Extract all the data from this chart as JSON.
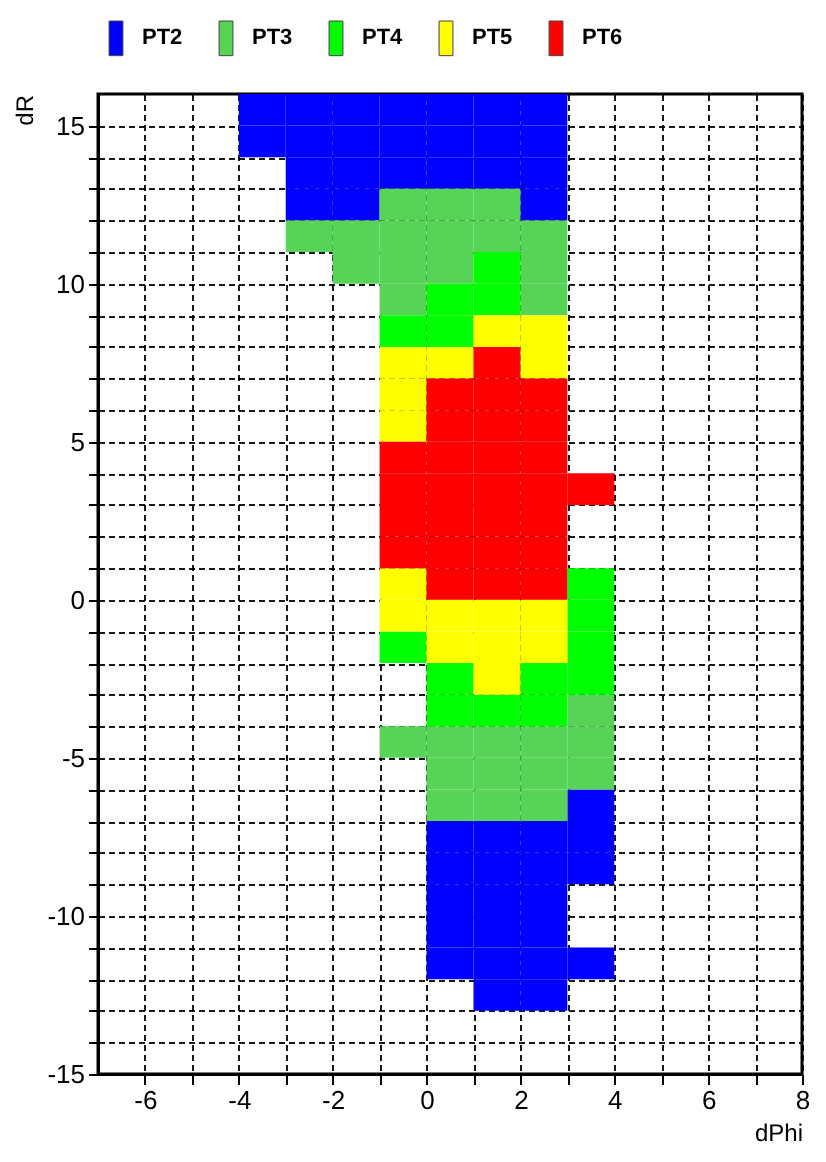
{
  "chart_data": {
    "type": "scatter",
    "xlabel": "dPhi",
    "ylabel": "dR",
    "xlim": [
      -7,
      8
    ],
    "ylim": [
      -15,
      16
    ],
    "xticks": [
      -6,
      {
        "value": -5,
        "label": null
      },
      -4,
      {
        "value": -3,
        "label": null
      },
      -2,
      {
        "value": -1,
        "label": null
      },
      0,
      {
        "value": 1,
        "label": null
      },
      2,
      {
        "value": 3,
        "label": null
      },
      4,
      {
        "value": 5,
        "label": null
      },
      6,
      {
        "value": 7,
        "label": null
      },
      8
    ],
    "yticks": [
      -15,
      {
        "value": -14,
        "label": null
      },
      {
        "value": -13,
        "label": null
      },
      {
        "value": -12,
        "label": null
      },
      {
        "value": -11,
        "label": null
      },
      -10,
      {
        "value": -9,
        "label": null
      },
      {
        "value": -8,
        "label": null
      },
      {
        "value": -7,
        "label": null
      },
      {
        "value": -6,
        "label": null
      },
      -5,
      {
        "value": -4,
        "label": null
      },
      {
        "value": -3,
        "label": null
      },
      {
        "value": -2,
        "label": null
      },
      {
        "value": -1,
        "label": null
      },
      0,
      {
        "value": 1,
        "label": null
      },
      {
        "value": 2,
        "label": null
      },
      {
        "value": 3,
        "label": null
      },
      {
        "value": 4,
        "label": null
      },
      5,
      {
        "value": 6,
        "label": null
      },
      {
        "value": 7,
        "label": null
      },
      {
        "value": 8,
        "label": null
      },
      {
        "value": 9,
        "label": null
      },
      10,
      {
        "value": 11,
        "label": null
      },
      {
        "value": 12,
        "label": null
      },
      {
        "value": 13,
        "label": null
      },
      {
        "value": 14,
        "label": null
      },
      15
    ],
    "grid": true,
    "legend": "top",
    "marker": "square",
    "series": [
      {
        "name": "PT2",
        "color": "#0000ff",
        "x": [
          -3.5,
          -2.5,
          -1.5,
          -0.5,
          0.5,
          1.5,
          2.5,
          -3.5,
          -2.5,
          -1.5,
          -0.5,
          0.5,
          1.5,
          2.5,
          -2.5,
          -1.5,
          -0.5,
          0.5,
          1.5,
          2.5,
          -2.5,
          -1.5,
          2.5,
          3.5,
          0.5,
          1.5,
          2.5,
          3.5,
          0.5,
          1.5,
          2.5,
          3.5,
          0.5,
          1.5,
          2.5,
          0.5,
          1.5,
          2.5,
          0.5,
          1.5,
          2.5,
          3.5,
          1.5,
          2.5
        ],
        "values": [
          15.5,
          15.5,
          15.5,
          15.5,
          15.5,
          15.5,
          15.5,
          14.5,
          14.5,
          14.5,
          14.5,
          14.5,
          14.5,
          14.5,
          13.5,
          13.5,
          13.5,
          13.5,
          13.5,
          13.5,
          12.5,
          12.5,
          12.5,
          -6.5,
          -7.5,
          -7.5,
          -7.5,
          -7.5,
          -8.5,
          -8.5,
          -8.5,
          -8.5,
          -9.5,
          -9.5,
          -9.5,
          -10.5,
          -10.5,
          -10.5,
          -11.5,
          -11.5,
          -11.5,
          -11.5,
          -12.5,
          -12.5
        ]
      },
      {
        "name": "PT3",
        "color": "#57d357",
        "x": [
          -0.5,
          0.5,
          1.5,
          -2.5,
          -1.5,
          -0.5,
          0.5,
          1.5,
          2.5,
          -1.5,
          -0.5,
          0.5,
          2.5,
          -0.5,
          2.5,
          3.5,
          -0.5,
          0.5,
          1.5,
          2.5,
          3.5,
          0.5,
          1.5,
          2.5,
          3.5,
          0.5,
          1.5,
          2.5
        ],
        "values": [
          12.5,
          12.5,
          12.5,
          11.5,
          11.5,
          11.5,
          11.5,
          11.5,
          11.5,
          10.5,
          10.5,
          10.5,
          10.5,
          9.5,
          9.5,
          -3.5,
          -4.5,
          -4.5,
          -4.5,
          -4.5,
          -4.5,
          -5.5,
          -5.5,
          -5.5,
          -5.5,
          -6.5,
          -6.5,
          -6.5
        ]
      },
      {
        "name": "PT4",
        "color": "#00ff00",
        "x": [
          1.5,
          0.5,
          1.5,
          -0.5,
          0.5,
          3.5,
          3.5,
          -0.5,
          3.5,
          0.5,
          2.5,
          3.5,
          0.5,
          1.5,
          2.5
        ],
        "values": [
          10.5,
          9.5,
          9.5,
          8.5,
          8.5,
          0.5,
          -0.5,
          -1.5,
          -1.5,
          -2.5,
          -2.5,
          -2.5,
          -3.5,
          -3.5,
          -3.5
        ]
      },
      {
        "name": "PT5",
        "color": "#ffff00",
        "x": [
          1.5,
          2.5,
          -0.5,
          0.5,
          2.5,
          -0.5,
          -0.5,
          -0.5,
          -0.5,
          0.5,
          1.5,
          2.5,
          0.5,
          1.5,
          2.5,
          1.5
        ],
        "values": [
          8.5,
          8.5,
          7.5,
          7.5,
          7.5,
          6.5,
          5.5,
          0.5,
          -0.5,
          -0.5,
          -0.5,
          -0.5,
          -1.5,
          -1.5,
          -1.5,
          -2.5
        ]
      },
      {
        "name": "PT6",
        "color": "#ff0000",
        "x": [
          1.5,
          0.5,
          1.5,
          2.5,
          0.5,
          1.5,
          2.5,
          -0.5,
          0.5,
          1.5,
          2.5,
          -0.5,
          0.5,
          1.5,
          2.5,
          3.5,
          -0.5,
          0.5,
          1.5,
          2.5,
          -0.5,
          0.5,
          1.5,
          2.5,
          0.5,
          1.5,
          2.5
        ],
        "values": [
          7.5,
          6.5,
          6.5,
          6.5,
          5.5,
          5.5,
          5.5,
          4.5,
          4.5,
          4.5,
          4.5,
          3.5,
          3.5,
          3.5,
          3.5,
          3.5,
          2.5,
          2.5,
          2.5,
          2.5,
          1.5,
          1.5,
          1.5,
          1.5,
          0.5,
          0.5,
          0.5
        ]
      }
    ]
  }
}
